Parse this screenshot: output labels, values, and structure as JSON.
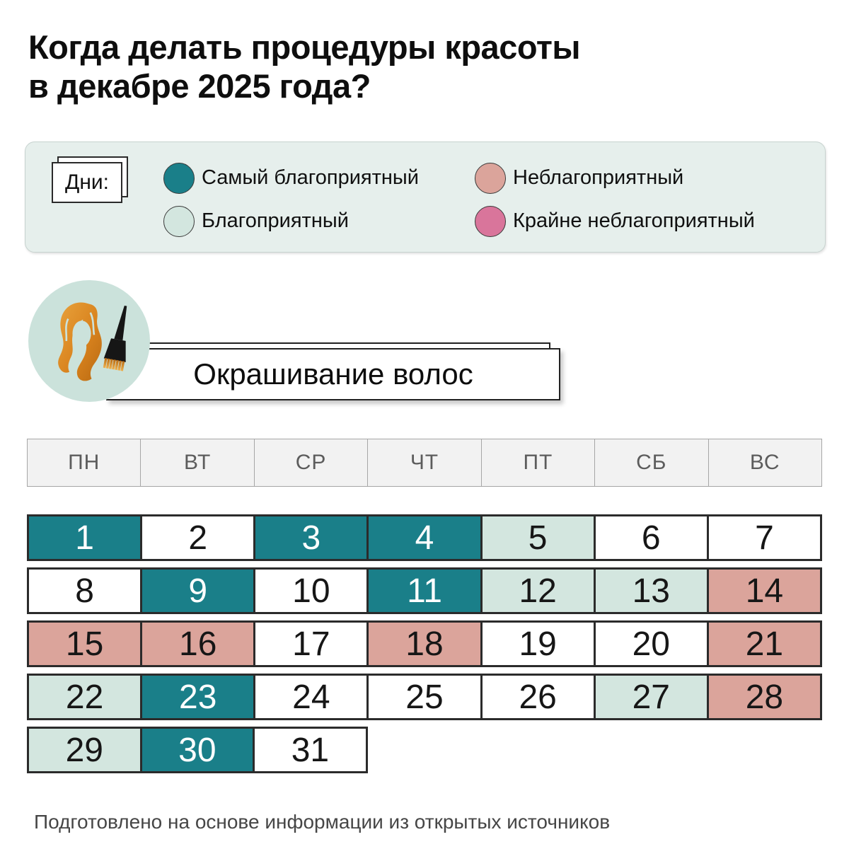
{
  "title": {
    "line1": "Когда делать процедуры красоты",
    "line2": "в декабре 2025 года?"
  },
  "legend": {
    "label": "Дни:",
    "items": [
      {
        "key": "best",
        "label": "Самый благоприятный",
        "color": "#1A7F89"
      },
      {
        "key": "good",
        "label": "Благоприятный",
        "color": "#D3E6DF"
      },
      {
        "key": "bad",
        "label": "Неблагоприятный",
        "color": "#DBA49B"
      },
      {
        "key": "worst",
        "label": "Крайне неблагоприятный",
        "color": "#D9759B"
      }
    ]
  },
  "section": {
    "title": "Окрашивание волос",
    "icon": "hair-coloring-icon"
  },
  "calendar": {
    "weekdays": [
      "ПН",
      "ВТ",
      "СР",
      "ЧТ",
      "ПТ",
      "СБ",
      "ВС"
    ],
    "weeks": [
      [
        {
          "day": 1,
          "status": "best"
        },
        {
          "day": 2,
          "status": "none"
        },
        {
          "day": 3,
          "status": "best"
        },
        {
          "day": 4,
          "status": "best"
        },
        {
          "day": 5,
          "status": "good"
        },
        {
          "day": 6,
          "status": "none"
        },
        {
          "day": 7,
          "status": "none"
        }
      ],
      [
        {
          "day": 8,
          "status": "none"
        },
        {
          "day": 9,
          "status": "best"
        },
        {
          "day": 10,
          "status": "none"
        },
        {
          "day": 11,
          "status": "best"
        },
        {
          "day": 12,
          "status": "good"
        },
        {
          "day": 13,
          "status": "good"
        },
        {
          "day": 14,
          "status": "bad"
        }
      ],
      [
        {
          "day": 15,
          "status": "bad"
        },
        {
          "day": 16,
          "status": "bad"
        },
        {
          "day": 17,
          "status": "none"
        },
        {
          "day": 18,
          "status": "bad"
        },
        {
          "day": 19,
          "status": "none"
        },
        {
          "day": 20,
          "status": "none"
        },
        {
          "day": 21,
          "status": "bad"
        }
      ],
      [
        {
          "day": 22,
          "status": "good"
        },
        {
          "day": 23,
          "status": "best"
        },
        {
          "day": 24,
          "status": "none"
        },
        {
          "day": 25,
          "status": "none"
        },
        {
          "day": 26,
          "status": "none"
        },
        {
          "day": 27,
          "status": "good"
        },
        {
          "day": 28,
          "status": "bad"
        }
      ],
      [
        {
          "day": 29,
          "status": "good"
        },
        {
          "day": 30,
          "status": "best"
        },
        {
          "day": 31,
          "status": "none"
        }
      ]
    ]
  },
  "colors": {
    "best": "#1A7F89",
    "good": "#D3E6DF",
    "bad": "#DBA49B",
    "worst": "#D9759B",
    "none": "#FFFFFF",
    "best_text": "#FFFFFF",
    "day_text": "#161616",
    "legend_bg": "#E6EFEC",
    "icon_bg": "#CBE2DB"
  },
  "chart_data": {
    "type": "heatmap",
    "title": "Когда делать процедуры красоты в декабре 2025 года?",
    "subtitle": "Окрашивание волос",
    "columns": [
      "ПН",
      "ВТ",
      "СР",
      "ЧТ",
      "ПТ",
      "СБ",
      "ВС"
    ],
    "legend": [
      "Самый благоприятный",
      "Благоприятный",
      "Неблагоприятный",
      "Крайне неблагоприятный"
    ],
    "days_best": [
      1,
      3,
      4,
      9,
      11,
      23,
      30
    ],
    "days_good": [
      5,
      12,
      13,
      22,
      27,
      29
    ],
    "days_bad": [
      14,
      15,
      16,
      18,
      21,
      28
    ],
    "days_worst": [],
    "days_neutral": [
      2,
      6,
      7,
      8,
      10,
      17,
      19,
      20,
      24,
      25,
      26,
      31
    ]
  },
  "footer": "Подготовлено на основе информации из открытых источников"
}
